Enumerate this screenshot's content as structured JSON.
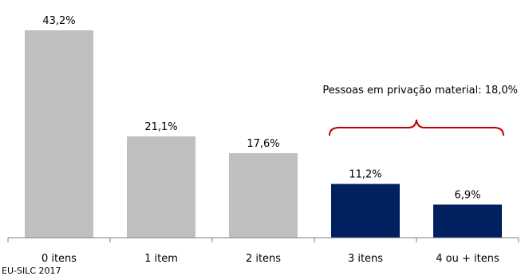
{
  "chart_data": {
    "type": "bar",
    "categories": [
      "0 itens",
      "1 item",
      "2 itens",
      "3 itens",
      "4 ou + itens"
    ],
    "values": [
      43.2,
      21.1,
      17.6,
      11.2,
      6.9
    ],
    "value_labels": [
      "43,2%",
      "21,1%",
      "17,6%",
      "11,2%",
      "6,9%"
    ],
    "colors": [
      "#bfbfbf",
      "#bfbfbf",
      "#bfbfbf",
      "#002060",
      "#002060"
    ],
    "ylim": [
      0,
      43.2
    ],
    "annotation": {
      "text": "Pessoas em privação material: 18,0%",
      "brace_color": "#c00000"
    }
  },
  "source": "EU-SILC 2017"
}
